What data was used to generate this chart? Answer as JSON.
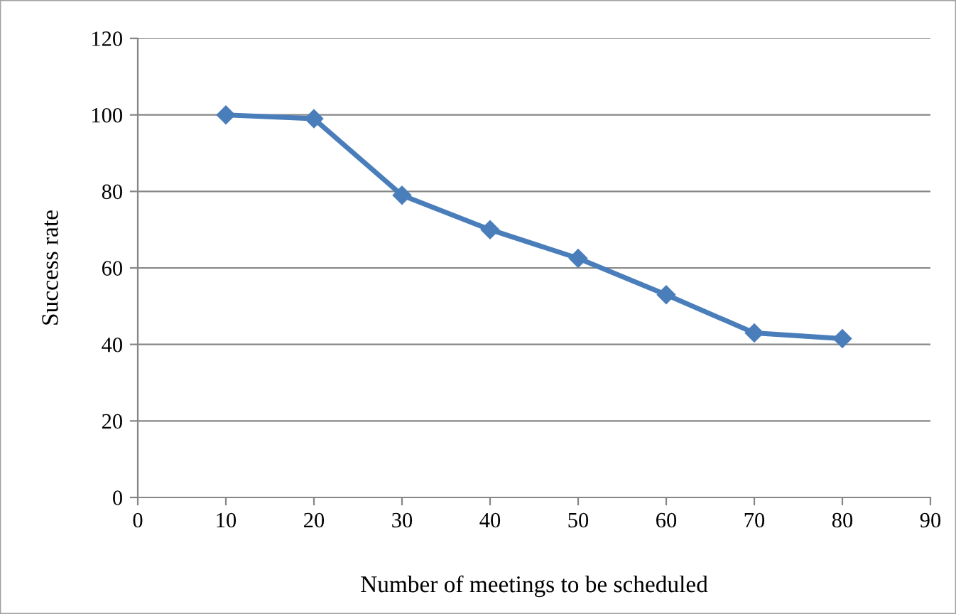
{
  "chart_data": {
    "type": "line",
    "xlabel": "Number of meetings to be scheduled",
    "ylabel": "Success rate",
    "x": [
      10,
      20,
      30,
      40,
      50,
      60,
      70,
      80
    ],
    "series": [
      {
        "color": "#4a7ebb",
        "values": [
          100,
          99,
          79,
          70,
          62.5,
          53,
          43,
          41.5
        ]
      }
    ],
    "xlim": [
      0,
      90
    ],
    "xticks": [
      0,
      10,
      20,
      30,
      40,
      50,
      60,
      70,
      80,
      90
    ],
    "ylim": [
      0,
      120
    ],
    "yticks": [
      0,
      20,
      40,
      60,
      80,
      100,
      120
    ],
    "grid": "y",
    "marker": "diamond",
    "line_style": "solid",
    "legend": false
  }
}
